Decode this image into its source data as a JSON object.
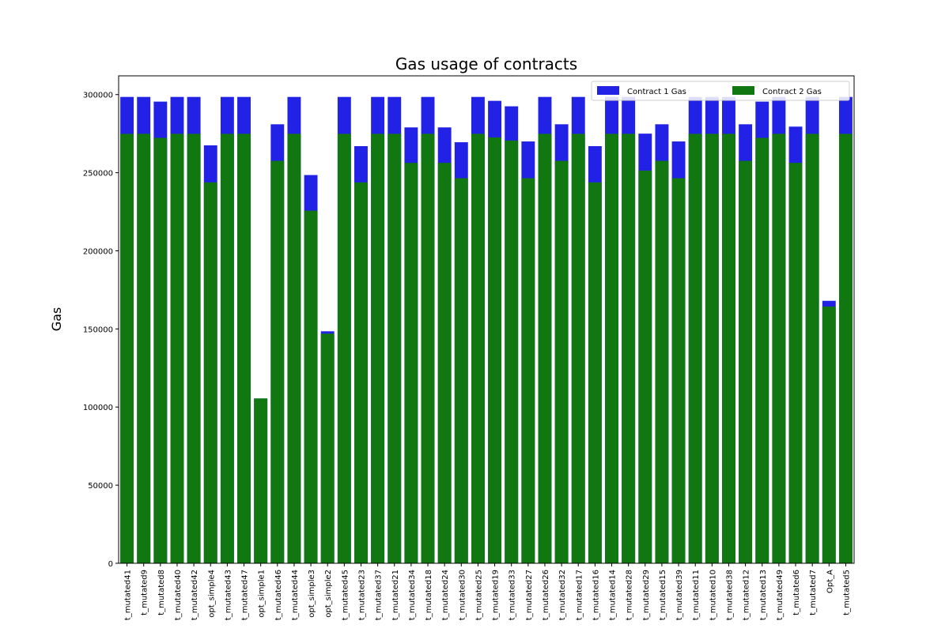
{
  "chart_data": {
    "type": "bar",
    "title": "Gas usage of contracts",
    "xlabel": "",
    "ylabel": "Gas",
    "ylim": [
      0,
      312000
    ],
    "yticks": [
      0,
      50000,
      100000,
      150000,
      200000,
      250000,
      300000
    ],
    "grid": false,
    "legend_position": "top-right",
    "bar_mode": "overlay",
    "categories": [
      "t_mutated41",
      "t_mutated9",
      "t_mutated8",
      "t_mutated40",
      "t_mutated42",
      "opt_simple4",
      "t_mutated43",
      "t_mutated47",
      "opt_simple1",
      "t_mutated46",
      "t_mutated44",
      "opt_simple3",
      "opt_simple2",
      "t_mutated45",
      "t_mutated23",
      "t_mutated37",
      "t_mutated21",
      "t_mutated34",
      "t_mutated18",
      "t_mutated24",
      "t_mutated30",
      "t_mutated25",
      "t_mutated19",
      "t_mutated33",
      "t_mutated27",
      "t_mutated26",
      "t_mutated32",
      "t_mutated17",
      "t_mutated16",
      "t_mutated14",
      "t_mutated28",
      "t_mutated29",
      "t_mutated15",
      "t_mutated39",
      "t_mutated11",
      "t_mutated10",
      "t_mutated38",
      "t_mutated12",
      "t_mutated13",
      "t_mutated49",
      "t_mutated6",
      "t_mutated7",
      "Opt_A",
      "t_mutated5"
    ],
    "series": [
      {
        "name": "Contract 1 Gas",
        "color": "#2222e6",
        "values": [
          298500,
          298500,
          295500,
          298500,
          298500,
          267500,
          298500,
          298500,
          105500,
          281000,
          298500,
          248500,
          148500,
          298500,
          267000,
          298500,
          298500,
          279000,
          298500,
          279000,
          269500,
          298500,
          296000,
          292500,
          270000,
          298500,
          281000,
          298500,
          267000,
          298500,
          298500,
          275000,
          281000,
          270000,
          298500,
          298500,
          298500,
          281000,
          295500,
          298500,
          279500,
          298500,
          168000,
          298500
        ]
      },
      {
        "name": "Contract 2 Gas",
        "color": "#117711",
        "values": [
          274900,
          274900,
          272300,
          274900,
          274900,
          243800,
          274900,
          274900,
          105500,
          257600,
          274900,
          225700,
          147000,
          274900,
          243800,
          274900,
          274900,
          256300,
          274900,
          256300,
          246500,
          274900,
          272600,
          270600,
          246500,
          274900,
          257600,
          274900,
          243800,
          274900,
          274900,
          251400,
          257600,
          246500,
          274900,
          274900,
          274900,
          257600,
          272300,
          274900,
          256300,
          274900,
          164300,
          274900
        ]
      }
    ]
  }
}
